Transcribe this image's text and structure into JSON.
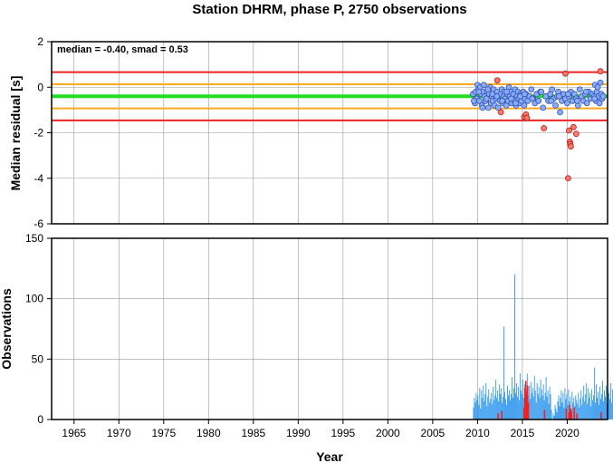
{
  "title": "Station DHRM, phase P, 2750 observations",
  "annotation": "median = -0.40, smad = 0.53",
  "colors": {
    "median_line": "#22dd22",
    "inner_band": "#ffaa22",
    "outer_band": "#ee2222",
    "point_fill": "#88aaff",
    "point_stroke": "#3355aa",
    "outlier_fill": "#ff7766",
    "outlier_stroke": "#aa2222",
    "bar_normal": "#3399ee",
    "bar_outlier": "#ee2222",
    "grid": "#999999"
  },
  "chart_data": [
    {
      "type": "scatter",
      "ylabel": "Median residual [s]",
      "xlim": [
        1962.5,
        2024.5
      ],
      "ylim": [
        -6,
        2
      ],
      "yticks": [
        "2",
        "0",
        "-2",
        "-4",
        "-6"
      ],
      "grid": true,
      "reference_lines": {
        "median": -0.4,
        "inner": [
          -0.93,
          0.13
        ],
        "outer": [
          -1.46,
          0.66
        ]
      },
      "series": [
        {
          "role": "normal",
          "x": [
            2009.5,
            2009.7,
            2009.8,
            2009.9,
            2010.0,
            2010.1,
            2010.2,
            2010.3,
            2010.4,
            2010.5,
            2010.6,
            2010.7,
            2010.8,
            2010.9,
            2011.0,
            2011.1,
            2011.2,
            2011.3,
            2011.4,
            2011.5,
            2011.6,
            2011.7,
            2011.8,
            2011.9,
            2012.0,
            2012.1,
            2012.2,
            2012.3,
            2012.5,
            2012.6,
            2012.7,
            2012.8,
            2012.9,
            2013.0,
            2013.1,
            2013.2,
            2013.3,
            2013.4,
            2013.5,
            2013.6,
            2013.7,
            2013.8,
            2013.9,
            2014.0,
            2014.1,
            2014.2,
            2014.3,
            2014.4,
            2014.5,
            2014.6,
            2014.7,
            2014.8,
            2014.9,
            2015.0,
            2015.1,
            2015.2,
            2015.3,
            2015.4,
            2015.6,
            2015.8,
            2016.0,
            2016.2,
            2016.4,
            2016.6,
            2016.8,
            2017.0,
            2017.3,
            2017.6,
            2017.9,
            2018.1,
            2018.3,
            2018.5,
            2018.7,
            2018.9,
            2019.0,
            2019.2,
            2019.4,
            2019.6,
            2019.8,
            2020.0,
            2020.2,
            2020.4,
            2020.6,
            2020.8,
            2021.0,
            2021.2,
            2021.4,
            2021.6,
            2021.8,
            2022.0,
            2022.2,
            2022.4,
            2022.6,
            2022.8,
            2023.0,
            2023.1,
            2023.2,
            2023.3,
            2023.4,
            2023.5,
            2023.6,
            2023.7,
            2023.8,
            2023.9,
            2024.0,
            2009.6,
            2010.15,
            2010.55,
            2011.15,
            2011.65,
            2012.15,
            2012.75,
            2013.25,
            2013.75,
            2014.25,
            2014.75,
            2015.25,
            2016.1,
            2017.1,
            2018.2,
            2019.1,
            2020.1,
            2021.1,
            2022.1,
            2023.05
          ],
          "y": [
            -0.3,
            -0.7,
            -0.2,
            -0.5,
            0.1,
            -0.1,
            -0.6,
            0.0,
            -0.3,
            -0.8,
            -0.2,
            0.1,
            -0.4,
            -0.6,
            -0.5,
            -0.2,
            -0.9,
            -0.3,
            0.0,
            -0.7,
            -0.4,
            -0.6,
            -0.1,
            -0.8,
            -0.3,
            -0.5,
            -0.2,
            -0.9,
            -0.6,
            -0.3,
            -0.1,
            -0.7,
            -0.4,
            -0.2,
            -0.5,
            -0.8,
            -0.3,
            -0.6,
            0.0,
            -0.4,
            -0.2,
            -0.7,
            -0.5,
            -0.3,
            -0.6,
            -0.1,
            -0.8,
            -0.4,
            -0.2,
            -0.5,
            -0.7,
            -0.3,
            -0.6,
            -0.4,
            -0.2,
            -0.8,
            -0.5,
            -0.3,
            -0.6,
            -0.4,
            -0.1,
            -0.5,
            -0.7,
            -0.3,
            -0.6,
            -0.2,
            -0.9,
            -0.4,
            -0.6,
            -0.3,
            -0.1,
            -0.5,
            -0.8,
            -0.4,
            -0.2,
            -1.1,
            -0.6,
            -0.3,
            -0.5,
            -0.7,
            -0.4,
            -0.2,
            -0.6,
            -0.3,
            -0.5,
            -0.8,
            -0.1,
            -0.4,
            -0.6,
            -0.3,
            -0.7,
            -0.2,
            -0.5,
            -0.3,
            -0.4,
            0.1,
            -0.6,
            -0.2,
            0.0,
            -0.4,
            -0.7,
            0.2,
            -0.3,
            -0.5,
            -0.4,
            -0.6,
            -0.2,
            -0.9,
            -0.1,
            -0.3,
            -0.4,
            -0.6,
            -0.2,
            -0.5,
            -0.7,
            -0.4,
            -0.3,
            -0.5,
            -0.2,
            -0.6,
            -0.4,
            -0.3,
            -0.6,
            -0.2,
            -0.5
          ]
        },
        {
          "role": "outlier",
          "x": [
            2012.2,
            2012.6,
            2015.2,
            2015.4,
            2015.5,
            2017.4,
            2019.8,
            2020.1,
            2020.2,
            2020.3,
            2020.35,
            2020.4,
            2020.7,
            2021.0,
            2023.7
          ],
          "y": [
            0.3,
            -1.1,
            -1.3,
            -1.2,
            -1.35,
            -1.8,
            0.6,
            -4.0,
            -1.9,
            -2.4,
            -2.5,
            -2.6,
            -1.75,
            -2.05,
            0.7
          ]
        }
      ]
    },
    {
      "type": "bar",
      "xlabel": "Year",
      "ylabel": "Observations",
      "xlim": [
        1962.5,
        2024.5
      ],
      "ylim": [
        0,
        150
      ],
      "yticks": [
        "150",
        "100",
        "50",
        "0"
      ],
      "xticks": [
        "1965",
        "1970",
        "1975",
        "1980",
        "1985",
        "1990",
        "1995",
        "2000",
        "2005",
        "2010",
        "2015",
        "2020"
      ],
      "grid": true,
      "series": [
        {
          "role": "normal",
          "x_start": 2009.5,
          "bin_width": 0.1,
          "values": [
            10,
            18,
            14,
            22,
            16,
            20,
            12,
            26,
            9,
            24,
            18,
            28,
            15,
            21,
            30,
            11,
            19,
            25,
            14,
            17,
            22,
            13,
            27,
            16,
            20,
            33,
            18,
            24,
            15,
            29,
            21,
            26,
            14,
            19,
            77,
            23,
            17,
            12,
            28,
            20,
            24,
            16,
            21,
            35,
            18,
            26,
            120,
            22,
            30,
            19,
            27,
            16,
            38,
            24,
            21,
            33,
            18,
            29,
            15,
            25,
            38,
            20,
            28,
            17,
            31,
            22,
            26,
            19,
            36,
            24,
            14,
            30,
            21,
            27,
            18,
            33,
            25,
            20,
            29,
            16,
            22,
            35,
            19,
            24,
            13,
            27,
            21,
            8,
            0,
            5,
            3,
            12,
            9,
            6,
            15,
            20,
            11,
            18,
            24,
            14,
            22,
            10,
            26,
            17,
            21,
            12,
            25,
            15,
            19,
            9,
            23,
            14,
            18,
            11,
            20,
            16,
            13,
            22,
            10,
            17,
            24,
            12,
            19,
            28,
            15,
            21,
            30,
            13,
            26,
            18,
            22,
            11,
            25,
            16,
            20,
            43,
            14,
            29,
            18,
            23,
            12,
            27,
            17,
            21,
            32,
            15,
            24,
            19,
            28,
            13,
            26,
            22,
            17,
            30,
            14,
            25,
            19,
            23,
            12,
            27,
            18,
            21,
            29,
            16,
            24,
            35,
            13,
            28,
            20,
            10
          ]
        },
        {
          "role": "outlier",
          "x": [
            2012.2,
            2012.6,
            2015.1,
            2015.2,
            2015.3,
            2015.4,
            2015.5,
            2015.6,
            2017.4,
            2019.8,
            2020.1,
            2020.2,
            2020.3,
            2020.4,
            2020.7,
            2021.0,
            2023.7
          ],
          "values": [
            5,
            7,
            10,
            26,
            32,
            22,
            28,
            14,
            8,
            9,
            6,
            12,
            9,
            7,
            10,
            5,
            6
          ]
        }
      ]
    }
  ]
}
